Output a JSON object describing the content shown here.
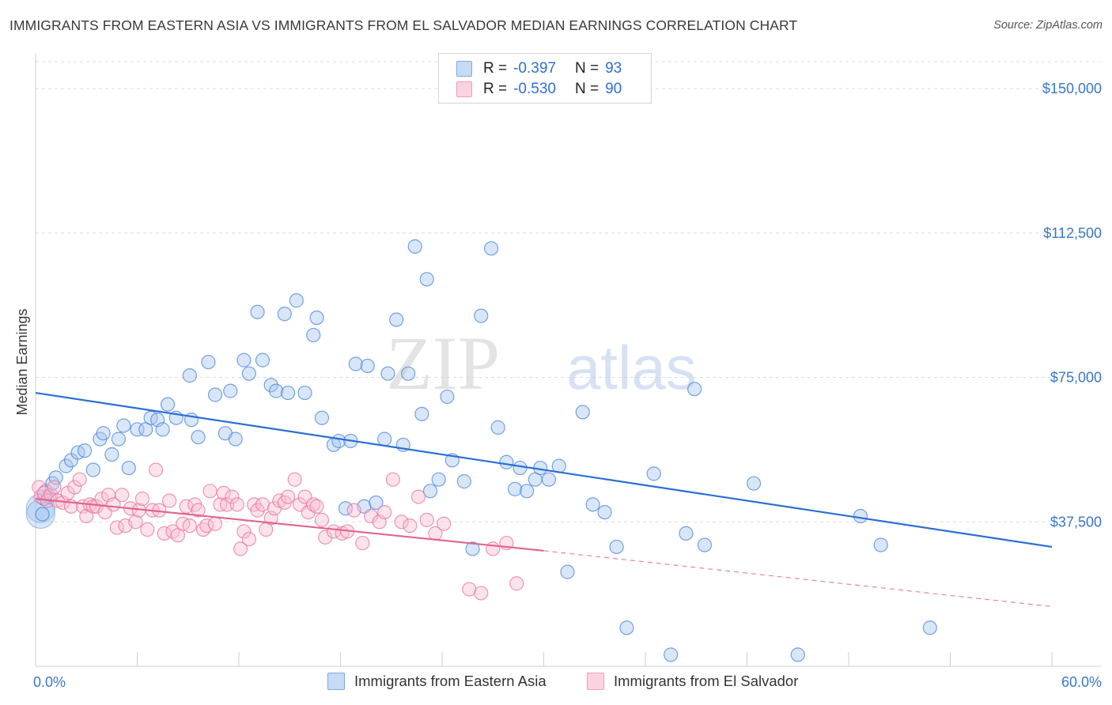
{
  "title": "IMMIGRANTS FROM EASTERN ASIA VS IMMIGRANTS FROM EL SALVADOR MEDIAN EARNINGS CORRELATION CHART",
  "source": "Source: ZipAtlas.com",
  "watermark": {
    "zip": "ZIP",
    "atlas": "atlas"
  },
  "legend": {
    "rows": [
      {
        "r_label": "R =",
        "r_value": "-0.397",
        "n_label": "N =",
        "n_value": "93",
        "color": "#7aaae6"
      },
      {
        "r_label": "R =",
        "r_value": "-0.530",
        "n_label": "N =",
        "n_value": "90",
        "color": "#f09cb8"
      }
    ]
  },
  "bottom_legend": {
    "items": [
      {
        "label": "Immigrants from Eastern Asia",
        "color": "#7aaae6"
      },
      {
        "label": "Immigrants from El Salvador",
        "color": "#f09cb8"
      }
    ]
  },
  "chart_data": {
    "type": "scatter",
    "title": "IMMIGRANTS FROM EASTERN ASIA VS IMMIGRANTS FROM EL SALVADOR MEDIAN EARNINGS CORRELATION CHART",
    "xlabel": "",
    "ylabel": "Median Earnings",
    "xlim": [
      0,
      60
    ],
    "ylim": [
      0,
      157000
    ],
    "x_tick_labels": [
      {
        "value": 0,
        "label": "0.0%"
      },
      {
        "value": 60,
        "label": "60.0%"
      }
    ],
    "y_ticks": [
      {
        "value": 37500,
        "label": "$37,500"
      },
      {
        "value": 75000,
        "label": "$75,000"
      },
      {
        "value": 112500,
        "label": "$112,500"
      },
      {
        "value": 150000,
        "label": "$150,000"
      }
    ],
    "grid": true,
    "series": [
      {
        "name": "Immigrants from Eastern Asia",
        "color": "#4a86d9",
        "fill": "#a9c8f0",
        "trend": {
          "x": [
            0,
            60
          ],
          "y": [
            71000,
            31000
          ],
          "color": "#2a6fd4"
        },
        "points": [
          [
            0.4,
            39500
          ],
          [
            0.5,
            43500
          ],
          [
            0.6,
            45500
          ],
          [
            0.8,
            44000
          ],
          [
            1.0,
            47500
          ],
          [
            1.2,
            49000
          ],
          [
            1.8,
            52000
          ],
          [
            2.1,
            53500
          ],
          [
            2.5,
            55500
          ],
          [
            2.9,
            56000
          ],
          [
            3.4,
            51000
          ],
          [
            3.8,
            59000
          ],
          [
            4.0,
            60500
          ],
          [
            4.5,
            55000
          ],
          [
            4.9,
            59000
          ],
          [
            5.2,
            62500
          ],
          [
            5.5,
            51500
          ],
          [
            6.0,
            61500
          ],
          [
            6.5,
            61500
          ],
          [
            6.8,
            64500
          ],
          [
            7.2,
            64000
          ],
          [
            7.5,
            61500
          ],
          [
            7.8,
            68000
          ],
          [
            8.3,
            64500
          ],
          [
            9.2,
            64000
          ],
          [
            9.1,
            75500
          ],
          [
            9.6,
            59500
          ],
          [
            10.2,
            79000
          ],
          [
            10.6,
            70500
          ],
          [
            11.2,
            60500
          ],
          [
            11.5,
            71500
          ],
          [
            11.8,
            59000
          ],
          [
            12.3,
            79500
          ],
          [
            12.6,
            76000
          ],
          [
            13.1,
            92000
          ],
          [
            13.4,
            79500
          ],
          [
            13.9,
            73000
          ],
          [
            14.2,
            71500
          ],
          [
            14.7,
            91500
          ],
          [
            14.9,
            71000
          ],
          [
            15.4,
            95000
          ],
          [
            15.9,
            71000
          ],
          [
            16.4,
            86000
          ],
          [
            16.6,
            90500
          ],
          [
            16.9,
            64500
          ],
          [
            17.6,
            57500
          ],
          [
            17.9,
            58500
          ],
          [
            18.3,
            41000
          ],
          [
            18.6,
            58500
          ],
          [
            18.9,
            78500
          ],
          [
            19.4,
            41500
          ],
          [
            19.6,
            78000
          ],
          [
            20.1,
            42500
          ],
          [
            20.6,
            59000
          ],
          [
            20.8,
            76000
          ],
          [
            21.3,
            90000
          ],
          [
            21.7,
            57500
          ],
          [
            22.0,
            76000
          ],
          [
            22.4,
            109000
          ],
          [
            22.8,
            65500
          ],
          [
            23.1,
            100500
          ],
          [
            23.3,
            45500
          ],
          [
            23.8,
            48500
          ],
          [
            24.3,
            70000
          ],
          [
            24.6,
            53500
          ],
          [
            25.3,
            48000
          ],
          [
            25.8,
            30500
          ],
          [
            26.3,
            91000
          ],
          [
            26.9,
            108500
          ],
          [
            27.3,
            62000
          ],
          [
            27.8,
            53000
          ],
          [
            28.3,
            46000
          ],
          [
            28.6,
            51500
          ],
          [
            29.0,
            45500
          ],
          [
            29.5,
            48500
          ],
          [
            29.8,
            51500
          ],
          [
            30.3,
            48500
          ],
          [
            30.9,
            52000
          ],
          [
            31.4,
            24500
          ],
          [
            32.3,
            66000
          ],
          [
            32.9,
            42000
          ],
          [
            33.6,
            40000
          ],
          [
            34.3,
            31000
          ],
          [
            34.9,
            10000
          ],
          [
            36.5,
            50000
          ],
          [
            37.5,
            3000
          ],
          [
            38.4,
            34500
          ],
          [
            38.9,
            72000
          ],
          [
            39.5,
            31500
          ],
          [
            42.4,
            47500
          ],
          [
            45.0,
            3000
          ],
          [
            48.7,
            39000
          ],
          [
            49.9,
            31500
          ],
          [
            52.8,
            10000
          ]
        ],
        "big_points": [
          [
            0.3,
            41000
          ],
          [
            0.3,
            39500
          ]
        ]
      },
      {
        "name": "Immigrants from El Salvador",
        "color": "#e8759d",
        "fill": "#f6bfd2",
        "trend": {
          "x": [
            0,
            30
          ],
          "y": [
            43500,
            30000
          ],
          "x_dash": [
            30,
            60
          ],
          "y_dash": [
            30000,
            15500
          ],
          "color": "#e0648e"
        },
        "points": [
          [
            0.2,
            46500
          ],
          [
            0.3,
            44000
          ],
          [
            0.5,
            45000
          ],
          [
            0.7,
            43000
          ],
          [
            0.9,
            44500
          ],
          [
            1.1,
            46500
          ],
          [
            1.3,
            43000
          ],
          [
            1.6,
            42500
          ],
          [
            1.9,
            45000
          ],
          [
            2.1,
            41500
          ],
          [
            2.3,
            46500
          ],
          [
            2.6,
            48500
          ],
          [
            2.8,
            41500
          ],
          [
            3.0,
            39000
          ],
          [
            3.2,
            42000
          ],
          [
            3.4,
            41500
          ],
          [
            3.6,
            41500
          ],
          [
            3.9,
            43500
          ],
          [
            4.1,
            40000
          ],
          [
            4.3,
            44500
          ],
          [
            4.6,
            42000
          ],
          [
            4.8,
            36000
          ],
          [
            5.1,
            44500
          ],
          [
            5.3,
            36500
          ],
          [
            5.6,
            41000
          ],
          [
            5.9,
            37500
          ],
          [
            6.1,
            40500
          ],
          [
            6.3,
            43500
          ],
          [
            6.6,
            35500
          ],
          [
            6.9,
            40500
          ],
          [
            7.1,
            51000
          ],
          [
            7.3,
            40500
          ],
          [
            7.6,
            34500
          ],
          [
            7.9,
            43000
          ],
          [
            8.1,
            35000
          ],
          [
            8.4,
            34000
          ],
          [
            8.7,
            37000
          ],
          [
            8.9,
            41500
          ],
          [
            9.1,
            36500
          ],
          [
            9.4,
            42000
          ],
          [
            9.6,
            40500
          ],
          [
            9.9,
            35500
          ],
          [
            10.1,
            36500
          ],
          [
            10.3,
            45500
          ],
          [
            10.6,
            37000
          ],
          [
            10.9,
            42000
          ],
          [
            11.1,
            45000
          ],
          [
            11.3,
            42000
          ],
          [
            11.6,
            44000
          ],
          [
            11.9,
            42000
          ],
          [
            12.1,
            30500
          ],
          [
            12.3,
            35000
          ],
          [
            12.6,
            33000
          ],
          [
            12.9,
            42000
          ],
          [
            13.1,
            40500
          ],
          [
            13.4,
            42000
          ],
          [
            13.6,
            35500
          ],
          [
            13.9,
            38500
          ],
          [
            14.1,
            41000
          ],
          [
            14.4,
            43000
          ],
          [
            14.7,
            42500
          ],
          [
            14.9,
            44000
          ],
          [
            15.3,
            48500
          ],
          [
            15.6,
            42000
          ],
          [
            15.9,
            44000
          ],
          [
            16.1,
            40000
          ],
          [
            16.4,
            42000
          ],
          [
            16.6,
            41500
          ],
          [
            16.9,
            38000
          ],
          [
            17.1,
            33500
          ],
          [
            17.6,
            35000
          ],
          [
            18.1,
            34500
          ],
          [
            18.4,
            35000
          ],
          [
            18.8,
            40500
          ],
          [
            19.3,
            32000
          ],
          [
            19.8,
            39000
          ],
          [
            20.3,
            37500
          ],
          [
            20.6,
            40000
          ],
          [
            21.1,
            48500
          ],
          [
            21.6,
            37500
          ],
          [
            22.1,
            36500
          ],
          [
            22.6,
            44000
          ],
          [
            23.1,
            38000
          ],
          [
            23.6,
            34500
          ],
          [
            24.1,
            37000
          ],
          [
            25.6,
            20000
          ],
          [
            26.3,
            19000
          ],
          [
            27.8,
            32000
          ],
          [
            28.4,
            21500
          ],
          [
            27.0,
            30500
          ]
        ]
      }
    ]
  }
}
